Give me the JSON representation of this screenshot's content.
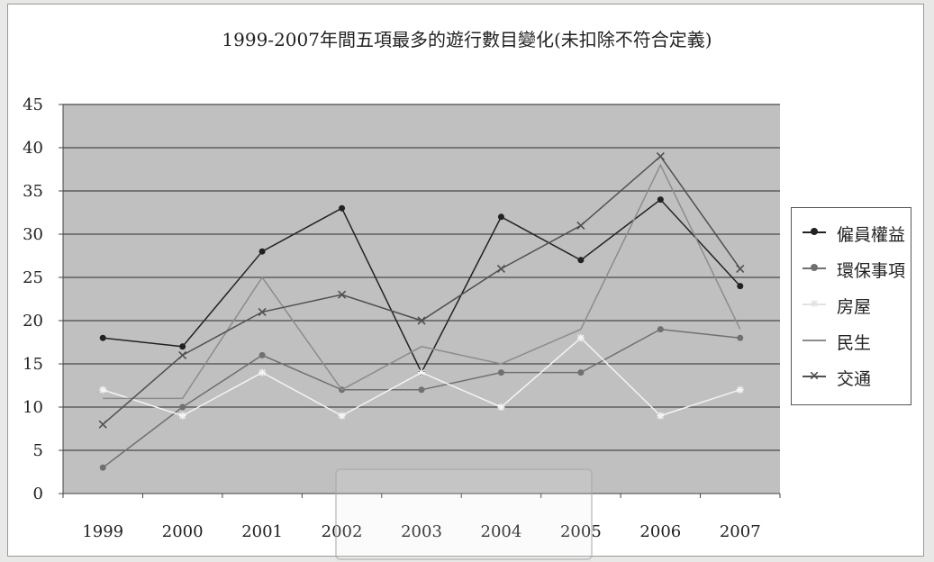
{
  "chart_data": {
    "type": "line",
    "title": "1999-2007年間五項最多的遊行數目變化(未扣除不符合定義)",
    "categories": [
      "1999",
      "2000",
      "2001",
      "2002",
      "2003",
      "2004",
      "2005",
      "2006",
      "2007"
    ],
    "ylim": [
      0,
      45
    ],
    "yticks": [
      "0",
      "5",
      "10",
      "15",
      "20",
      "25",
      "30",
      "35",
      "40",
      "45"
    ],
    "grid": true,
    "legend_position": "right",
    "plot_background": "#c0c0c0",
    "series": [
      {
        "name": "僱員權益",
        "values": [
          18,
          17,
          28,
          33,
          14,
          32,
          27,
          34,
          24
        ],
        "color": "#222222",
        "marker": "dot"
      },
      {
        "name": "環保事項",
        "values": [
          3,
          10,
          16,
          12,
          12,
          14,
          14,
          19,
          18
        ],
        "color": "#707070",
        "marker": "dot"
      },
      {
        "name": "房屋",
        "values": [
          12,
          9,
          14,
          9,
          14,
          10,
          18,
          9,
          12
        ],
        "color": "#f4f4f4",
        "marker": "star"
      },
      {
        "name": "民生",
        "values": [
          11,
          11,
          25,
          12,
          17,
          15,
          19,
          38,
          19
        ],
        "color": "#8c8c8c",
        "marker": "none"
      },
      {
        "name": "交通",
        "values": [
          8,
          16,
          21,
          23,
          20,
          26,
          31,
          39,
          26
        ],
        "color": "#505050",
        "marker": "x"
      }
    ]
  }
}
